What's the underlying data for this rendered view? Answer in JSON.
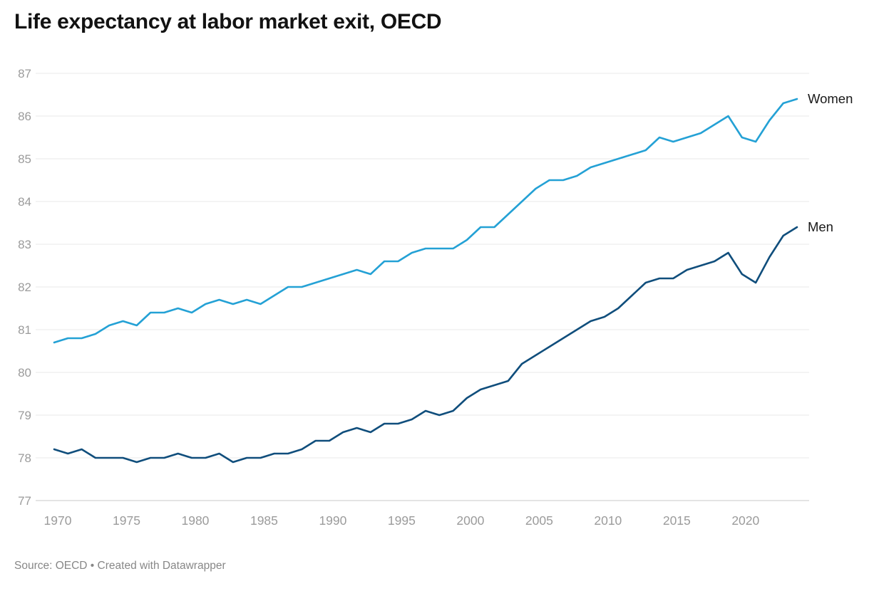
{
  "header": {
    "title": "Life expectancy at labor market exit, OECD"
  },
  "footer": {
    "source_text": "Source: OECD • Created with Datawrapper"
  },
  "colors": {
    "women": "#24a1d5",
    "men": "#104e7c",
    "grid": "#e9e9e9",
    "axis_baseline": "#c9c9c9",
    "tick_label": "#9b9b9b",
    "title_text": "#121212",
    "series_label": "#1a1a1a",
    "footer_text": "#878787",
    "background": "#ffffff"
  },
  "chart_data": {
    "type": "line",
    "title": "Life expectancy at labor market exit, OECD",
    "xlabel": "",
    "ylabel": "",
    "grid": "horizontal",
    "legend_position": "line-end-labels",
    "ylim": [
      77,
      87
    ],
    "yticks": [
      77,
      78,
      79,
      80,
      81,
      82,
      83,
      84,
      85,
      86,
      87
    ],
    "xticks": [
      1970,
      1975,
      1980,
      1985,
      1990,
      1995,
      2000,
      2005,
      2010,
      2015,
      2020
    ],
    "x": [
      1970,
      1971,
      1972,
      1973,
      1974,
      1975,
      1976,
      1977,
      1978,
      1979,
      1980,
      1981,
      1982,
      1983,
      1984,
      1985,
      1986,
      1987,
      1988,
      1989,
      1990,
      1991,
      1992,
      1993,
      1994,
      1995,
      1996,
      1997,
      1998,
      1999,
      2000,
      2001,
      2002,
      2003,
      2004,
      2005,
      2006,
      2007,
      2008,
      2009,
      2010,
      2011,
      2012,
      2013,
      2014,
      2015,
      2016,
      2017,
      2018,
      2019,
      2020,
      2021,
      2022,
      2023,
      2024
    ],
    "series": [
      {
        "name": "Women",
        "color": "#24a1d5",
        "values": [
          80.7,
          80.8,
          80.8,
          80.9,
          81.1,
          81.2,
          81.1,
          81.4,
          81.4,
          81.5,
          81.4,
          81.6,
          81.7,
          81.6,
          81.7,
          81.6,
          81.8,
          82.0,
          82.0,
          82.1,
          82.2,
          82.3,
          82.4,
          82.3,
          82.6,
          82.6,
          82.8,
          82.9,
          82.9,
          82.9,
          83.1,
          83.4,
          83.4,
          83.7,
          84.0,
          84.3,
          84.5,
          84.5,
          84.6,
          84.8,
          84.9,
          85.0,
          85.1,
          85.2,
          85.5,
          85.4,
          85.5,
          85.6,
          85.8,
          86.0,
          85.5,
          85.4,
          85.9,
          86.3,
          86.4
        ]
      },
      {
        "name": "Men",
        "color": "#104e7c",
        "values": [
          78.2,
          78.1,
          78.2,
          78.0,
          78.0,
          78.0,
          77.9,
          78.0,
          78.0,
          78.1,
          78.0,
          78.0,
          78.1,
          77.9,
          78.0,
          78.0,
          78.1,
          78.1,
          78.2,
          78.4,
          78.4,
          78.6,
          78.7,
          78.6,
          78.8,
          78.8,
          78.9,
          79.1,
          79.0,
          79.1,
          79.4,
          79.6,
          79.7,
          79.8,
          80.2,
          80.4,
          80.6,
          80.8,
          81.0,
          81.2,
          81.3,
          81.5,
          81.8,
          82.1,
          82.2,
          82.2,
          82.4,
          82.5,
          82.6,
          82.8,
          82.3,
          82.1,
          82.7,
          83.2,
          83.4
        ]
      }
    ]
  }
}
